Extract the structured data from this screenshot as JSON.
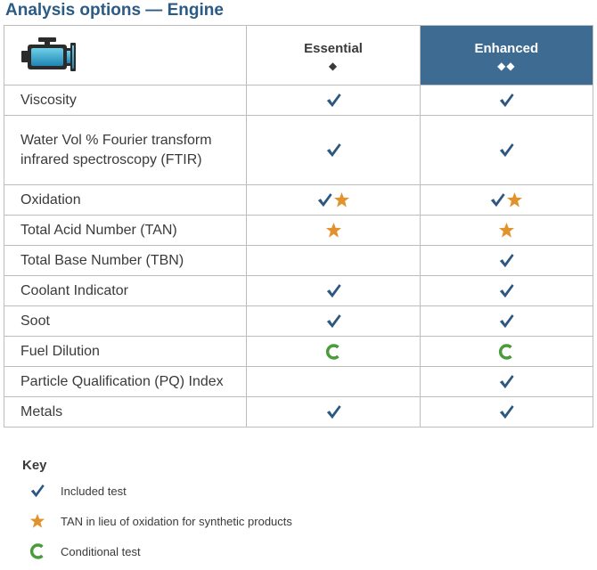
{
  "title": "Analysis options — Engine",
  "header": {
    "icon": "engine-icon",
    "columns": [
      {
        "name": "Essential",
        "symbol": "◆"
      },
      {
        "name": "Enhanced",
        "symbol": "◆◆"
      }
    ]
  },
  "colors": {
    "title": "#2a5b86",
    "enhanced_header": "#3e6b92",
    "check": "#2c5780",
    "star": "#e1922b",
    "conditional": "#4a9b3a"
  },
  "rows": [
    {
      "label": "Viscosity",
      "essential": [
        "check"
      ],
      "enhanced": [
        "check"
      ]
    },
    {
      "label": "Water Vol % Fourier transform infrared spectroscopy (FTIR)",
      "essential": [
        "check"
      ],
      "enhanced": [
        "check"
      ]
    },
    {
      "label": "Oxidation",
      "essential": [
        "check",
        "star"
      ],
      "enhanced": [
        "check",
        "star"
      ]
    },
    {
      "label": "Total Acid Number (TAN)",
      "essential": [
        "star"
      ],
      "enhanced": [
        "star"
      ]
    },
    {
      "label": "Total Base Number (TBN)",
      "essential": [],
      "enhanced": [
        "check"
      ]
    },
    {
      "label": "Coolant Indicator",
      "essential": [
        "check"
      ],
      "enhanced": [
        "check"
      ]
    },
    {
      "label": "Soot",
      "essential": [
        "check"
      ],
      "enhanced": [
        "check"
      ]
    },
    {
      "label": "Fuel Dilution",
      "essential": [
        "conditional"
      ],
      "enhanced": [
        "conditional"
      ]
    },
    {
      "label": "Particle Qualification (PQ) Index",
      "essential": [],
      "enhanced": [
        "check"
      ]
    },
    {
      "label": "Metals",
      "essential": [
        "check"
      ],
      "enhanced": [
        "check"
      ]
    }
  ],
  "key": {
    "title": "Key",
    "items": [
      {
        "icon": "check",
        "text": "Included test"
      },
      {
        "icon": "star",
        "text": "TAN in lieu of oxidation for synthetic products"
      },
      {
        "icon": "conditional",
        "text": "Conditional test"
      }
    ]
  }
}
